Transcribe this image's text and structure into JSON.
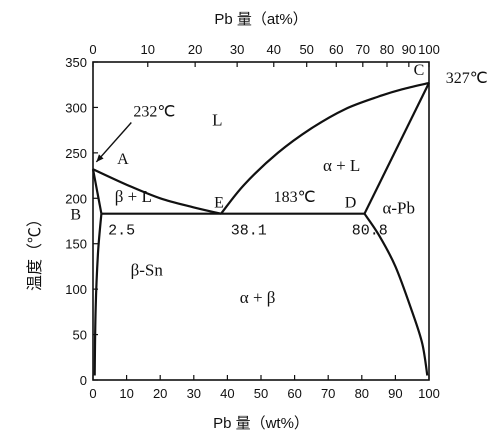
{
  "chart_data": {
    "type": "phase-diagram",
    "title": "",
    "top_axis": {
      "label": "Pb 量（at%）",
      "ticks": [
        0,
        10,
        20,
        30,
        40,
        50,
        60,
        70,
        80,
        90,
        100
      ],
      "at_to_wt_pairs": [
        [
          0,
          0
        ],
        [
          10,
          16.3
        ],
        [
          20,
          30.4
        ],
        [
          30,
          42.9
        ],
        [
          40,
          53.8
        ],
        [
          50,
          63.6
        ],
        [
          60,
          72.4
        ],
        [
          70,
          80.3
        ],
        [
          80,
          87.5
        ],
        [
          90,
          94.0
        ],
        [
          100,
          100
        ]
      ]
    },
    "xlabel": "Pb 量（wt%）",
    "ylabel": "温度（℃）",
    "xlim": [
      0,
      100
    ],
    "ylim": [
      0,
      350
    ],
    "x_ticks": [
      0,
      10,
      20,
      30,
      40,
      50,
      60,
      70,
      80,
      90,
      100
    ],
    "y_ticks": [
      0,
      50,
      100,
      150,
      200,
      250,
      300,
      350
    ],
    "series": [
      {
        "role": "liquidus-left",
        "points": [
          [
            0,
            232
          ],
          [
            10,
            215
          ],
          [
            20,
            200
          ],
          [
            30,
            190
          ],
          [
            38.1,
            183
          ]
        ]
      },
      {
        "role": "liquidus-right",
        "points": [
          [
            38.1,
            183
          ],
          [
            45,
            215
          ],
          [
            55,
            250
          ],
          [
            65,
            277
          ],
          [
            75,
            298
          ],
          [
            85,
            312
          ],
          [
            92,
            320
          ],
          [
            100,
            327
          ]
        ]
      },
      {
        "role": "eutectic-isotherm",
        "points": [
          [
            2.5,
            183
          ],
          [
            80.8,
            183
          ]
        ]
      },
      {
        "role": "solidus-alpha",
        "points": [
          [
            80.8,
            183
          ],
          [
            100,
            327
          ]
        ]
      },
      {
        "role": "solvus-alpha",
        "points": [
          [
            80.8,
            183
          ],
          [
            85,
            160
          ],
          [
            90,
            125
          ],
          [
            95,
            75
          ],
          [
            98,
            40
          ],
          [
            99.5,
            5
          ]
        ]
      },
      {
        "role": "solidus-beta",
        "points": [
          [
            0,
            232
          ],
          [
            2.5,
            183
          ]
        ]
      },
      {
        "role": "solvus-beta",
        "points": [
          [
            2.5,
            183
          ],
          [
            1.5,
            140
          ],
          [
            0.8,
            80
          ],
          [
            0.5,
            5
          ]
        ]
      }
    ],
    "points": [
      {
        "name": "A",
        "x": 3,
        "y": 238
      },
      {
        "name": "B",
        "x": 0,
        "y": 183
      },
      {
        "name": "C",
        "x": 100,
        "y": 327
      },
      {
        "name": "D",
        "x": 80.8,
        "y": 183
      },
      {
        "name": "E",
        "x": 38.1,
        "y": 183
      }
    ],
    "annotations": [
      {
        "text": "232℃",
        "x": 12,
        "y": 290,
        "arrow_to": [
          1,
          240
        ]
      },
      {
        "text": "327℃",
        "x": 105,
        "y": 327
      },
      {
        "text": "183℃",
        "x": 60,
        "y": 196
      },
      {
        "text": "2.5",
        "x": 4.5,
        "y": 160
      },
      {
        "text": "38.1",
        "x": 41,
        "y": 160
      },
      {
        "text": "80.8",
        "x": 77,
        "y": 160
      }
    ],
    "regions": [
      {
        "text": "L",
        "x": 37,
        "y": 280
      },
      {
        "text": "α + L",
        "x": 74,
        "y": 230
      },
      {
        "text": "β + L",
        "x": 12,
        "y": 196
      },
      {
        "text": "α-Pb",
        "x": 91,
        "y": 183
      },
      {
        "text": "β-Sn",
        "x": 16,
        "y": 115
      },
      {
        "text": "α + β",
        "x": 49,
        "y": 85
      }
    ]
  }
}
